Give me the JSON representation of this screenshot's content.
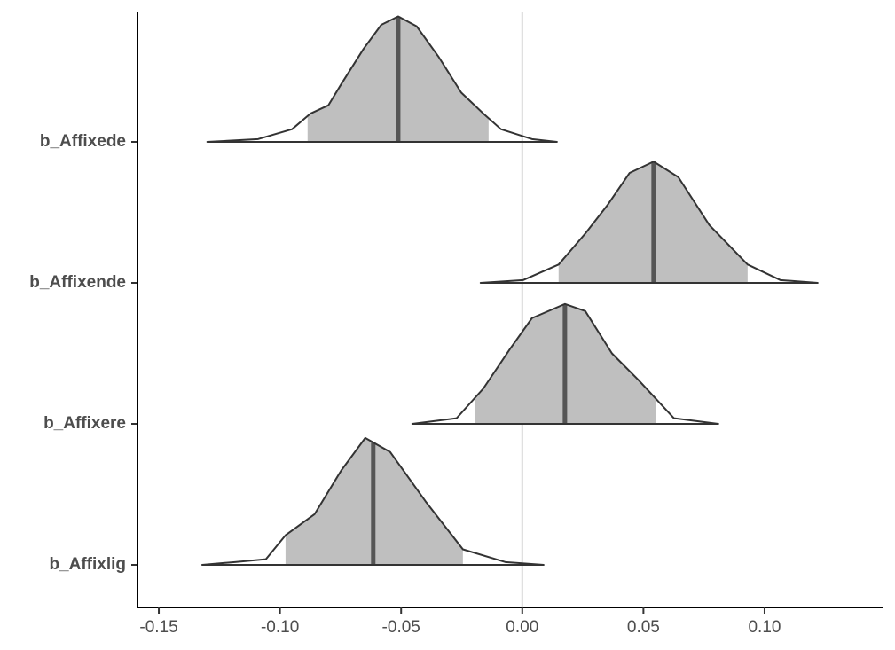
{
  "chart_data": {
    "type": "ridgeline",
    "categories": [
      "b_Affixede",
      "b_Affixende",
      "b_Affixere",
      "b_Affixlig"
    ],
    "rows": [
      {
        "x": [
          -0.13,
          -0.109,
          -0.095,
          -0.0875,
          -0.08,
          -0.0747,
          -0.0655,
          -0.0582,
          -0.0512,
          -0.0436,
          -0.0344,
          -0.0252,
          -0.016,
          -0.0088,
          0.004,
          0.0143
        ],
        "density": [
          0,
          0.02,
          0.09,
          0.2,
          0.26,
          0.41,
          0.66,
          0.83,
          0.89,
          0.82,
          0.6,
          0.35,
          0.2,
          0.09,
          0.02,
          0
        ],
        "median": -0.0512,
        "interval": [
          -0.0886,
          -0.0139
        ]
      },
      {
        "x": [
          -0.0172,
          0.0004,
          0.015,
          0.026,
          0.0351,
          0.0443,
          0.0542,
          0.0644,
          0.0772,
          0.093,
          0.1065,
          0.1219
        ],
        "density": [
          0,
          0.02,
          0.13,
          0.35,
          0.55,
          0.78,
          0.86,
          0.75,
          0.41,
          0.13,
          0.02,
          0
        ],
        "median": 0.0542,
        "interval": [
          0.015,
          0.093
        ]
      },
      {
        "x": [
          -0.0454,
          -0.0271,
          -0.0161,
          -0.0051,
          0.004,
          0.0176,
          0.026,
          0.037,
          0.048,
          0.0626,
          0.0809
        ],
        "density": [
          0,
          0.04,
          0.25,
          0.53,
          0.75,
          0.85,
          0.8,
          0.5,
          0.31,
          0.04,
          0
        ],
        "median": 0.0176,
        "interval": [
          -0.0194,
          0.0553
        ]
      },
      {
        "x": [
          -0.1321,
          -0.1186,
          -0.1058,
          -0.0977,
          -0.0857,
          -0.0747,
          -0.0648,
          -0.0545,
          -0.0399,
          -0.0245,
          -0.007,
          0.0088
        ],
        "density": [
          0,
          0.02,
          0.04,
          0.21,
          0.36,
          0.67,
          0.9,
          0.8,
          0.45,
          0.11,
          0.02,
          0
        ],
        "median": -0.0615,
        "interval": [
          -0.0977,
          -0.0245
        ]
      }
    ],
    "xlim": [
      -0.1588,
      0.1487
    ],
    "xticks": [
      -0.15,
      {
        "value": -0.1,
        "label": "-0.10"
      },
      -0.05,
      {
        "value": 0,
        "label": "0.00"
      },
      0.05,
      {
        "value": 0.1,
        "label": "0.10"
      }
    ],
    "reference_line": 0,
    "fill_color": "#bfbfbf",
    "line_color": "#333333",
    "median_color": "#555555"
  }
}
